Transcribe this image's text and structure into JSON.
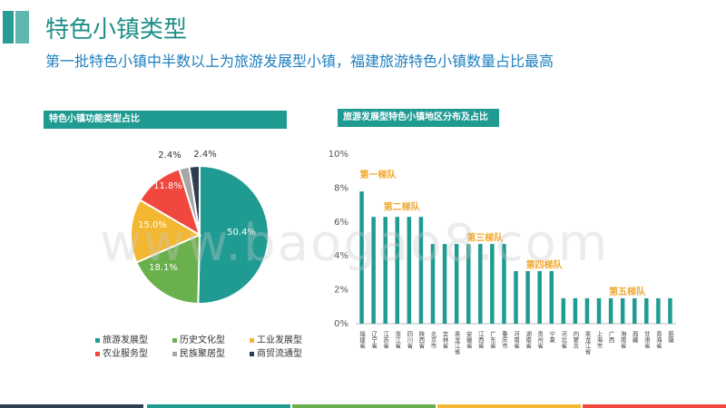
{
  "header": {
    "title": "特色小镇类型",
    "subtitle": "第一批特色小镇中半数以上为旅游发展型小镇，福建旅游特色小镇数量占比最高"
  },
  "watermark": "www.baogao8.com",
  "colors": {
    "accent": "#1f9b92",
    "pie": [
      "#1f9b92",
      "#6ab04c",
      "#f3b731",
      "#f0483e",
      "#a6a6a6",
      "#2c3e50"
    ],
    "bars": "#1f9b92",
    "tier_label": "#f0a830",
    "bottom_strip": [
      "#2c3e50",
      "#1f9b92",
      "#6ab04c",
      "#f3b731",
      "#f0483e"
    ]
  },
  "chart_data": [
    {
      "type": "pie",
      "title": "特色小镇功能类型占比",
      "categories": [
        "旅游发展型",
        "历史文化型",
        "工业发展型",
        "农业服务型",
        "民族聚居型",
        "商贸流通型"
      ],
      "values": [
        50.4,
        18.1,
        15.0,
        11.8,
        2.4,
        2.4
      ],
      "data_labels": [
        "50.4%",
        "18.1%",
        "15.0%",
        "11.8%",
        "2.4%",
        "2.4%"
      ],
      "legend_position": "bottom"
    },
    {
      "type": "bar",
      "title": "旅游发展型特色小镇地区分布及占比",
      "categories": [
        "福建省",
        "辽宁省",
        "江苏省",
        "浙江省",
        "四川省",
        "陕西省",
        "北京市",
        "吉林省",
        "黑龙江省",
        "安徽省",
        "江西省",
        "广东省",
        "重庆市",
        "河南省",
        "湖南省",
        "贵州省",
        "宁夏",
        "河北省",
        "内蒙古",
        "黑龙江省",
        "上海市",
        "广西",
        "海南省",
        "西藏",
        "甘肃省",
        "青海省",
        "新疆"
      ],
      "values": [
        7.8,
        6.3,
        6.3,
        6.3,
        6.3,
        6.3,
        4.7,
        4.7,
        4.7,
        4.7,
        4.7,
        4.7,
        4.7,
        3.1,
        3.1,
        3.1,
        3.1,
        1.5,
        1.5,
        1.5,
        1.5,
        1.5,
        1.5,
        1.5,
        1.5,
        1.5,
        1.5
      ],
      "ylim": [
        0,
        10
      ],
      "yticks": [
        "0%",
        "2%",
        "4%",
        "6%",
        "8%",
        "10%"
      ],
      "annotations": [
        {
          "text": "第一梯队",
          "index": 0,
          "value": 8.6
        },
        {
          "text": "第二梯队",
          "index": 2,
          "value": 6.7
        },
        {
          "text": "第三梯队",
          "index": 9,
          "value": 4.9
        },
        {
          "text": "第四梯队",
          "index": 14,
          "value": 3.3
        },
        {
          "text": "第五梯队",
          "index": 21,
          "value": 1.7
        }
      ],
      "grid": false
    }
  ]
}
